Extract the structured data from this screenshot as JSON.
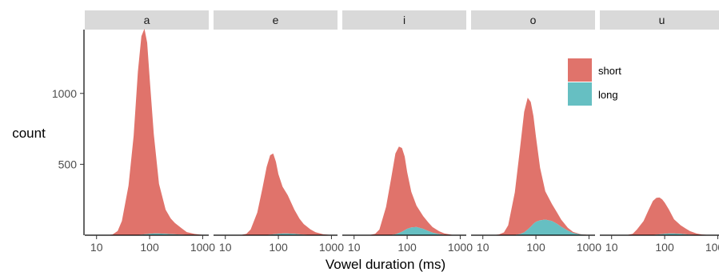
{
  "chart_data": {
    "type": "area",
    "layout": "faceted-stacked-area",
    "facets": [
      "a",
      "e",
      "i",
      "o",
      "u"
    ],
    "xlabel": "Vowel duration (ms)",
    "ylabel": "count",
    "x_scale": "log10",
    "x_ticks": [
      10,
      100,
      1000
    ],
    "x_tick_labels": [
      "10",
      "100",
      "1000"
    ],
    "xlim": [
      6,
      1300
    ],
    "ylim": [
      0,
      1450
    ],
    "y_ticks": [
      500,
      1000
    ],
    "y_tick_labels": [
      "500",
      "1000"
    ],
    "grid": false,
    "legend": {
      "position": "top-right",
      "entries": [
        "short",
        "long"
      ]
    },
    "series_colors": {
      "short": "#E0736B",
      "long": "#66BFC2"
    },
    "x": [
      10,
      15,
      20,
      25,
      30,
      40,
      50,
      60,
      70,
      80,
      90,
      100,
      120,
      150,
      200,
      250,
      300,
      400,
      500,
      700,
      1000,
      1300
    ],
    "panels": [
      {
        "facet": "a",
        "series": [
          {
            "name": "short",
            "values": [
              0,
              0,
              5,
              30,
              100,
              350,
              700,
              1150,
              1400,
              1450,
              1350,
              1100,
              700,
              350,
              170,
              110,
              80,
              45,
              20,
              8,
              2,
              0
            ]
          },
          {
            "name": "long",
            "values": [
              0,
              0,
              0,
              0,
              0,
              0,
              0,
              2,
              4,
              6,
              8,
              10,
              12,
              12,
              10,
              8,
              6,
              4,
              2,
              1,
              0,
              0
            ]
          }
        ]
      },
      {
        "facet": "e",
        "series": [
          {
            "name": "short",
            "values": [
              0,
              0,
              2,
              10,
              40,
              160,
              330,
              480,
              560,
              570,
              510,
              420,
              330,
              270,
              170,
              110,
              75,
              40,
              20,
              6,
              1,
              0
            ]
          },
          {
            "name": "long",
            "values": [
              0,
              0,
              0,
              0,
              0,
              0,
              0,
              2,
              4,
              6,
              8,
              10,
              12,
              12,
              10,
              6,
              4,
              2,
              1,
              0,
              0,
              0
            ]
          }
        ]
      },
      {
        "facet": "i",
        "series": [
          {
            "name": "short",
            "values": [
              0,
              0,
              2,
              10,
              40,
              200,
              400,
              570,
              610,
              590,
              520,
              400,
              250,
              150,
              90,
              60,
              40,
              20,
              10,
              3,
              0,
              0
            ]
          },
          {
            "name": "long",
            "values": [
              0,
              0,
              0,
              0,
              0,
              0,
              2,
              6,
              15,
              25,
              35,
              45,
              55,
              58,
              45,
              30,
              18,
              8,
              3,
              0,
              0,
              0
            ]
          }
        ]
      },
      {
        "facet": "o",
        "series": [
          {
            "name": "short",
            "values": [
              0,
              0,
              5,
              20,
              70,
              300,
              600,
              850,
              930,
              880,
              760,
              600,
              370,
              200,
              120,
              80,
              50,
              20,
              8,
              2,
              0,
              0
            ]
          },
          {
            "name": "long",
            "values": [
              0,
              0,
              0,
              0,
              0,
              2,
              8,
              20,
              40,
              60,
              80,
              95,
              105,
              110,
              100,
              80,
              60,
              32,
              15,
              5,
              1,
              0
            ]
          }
        ]
      },
      {
        "facet": "u",
        "series": [
          {
            "name": "short",
            "values": [
              0,
              0,
              2,
              10,
              40,
              100,
              180,
              240,
              260,
              260,
              245,
              220,
              170,
              100,
              60,
              40,
              25,
              10,
              4,
              1,
              0,
              0
            ]
          },
          {
            "name": "long",
            "values": [
              0,
              0,
              0,
              0,
              0,
              0,
              0,
              2,
              4,
              6,
              8,
              10,
              12,
              12,
              10,
              6,
              4,
              2,
              1,
              0,
              0,
              0
            ]
          }
        ]
      }
    ]
  }
}
